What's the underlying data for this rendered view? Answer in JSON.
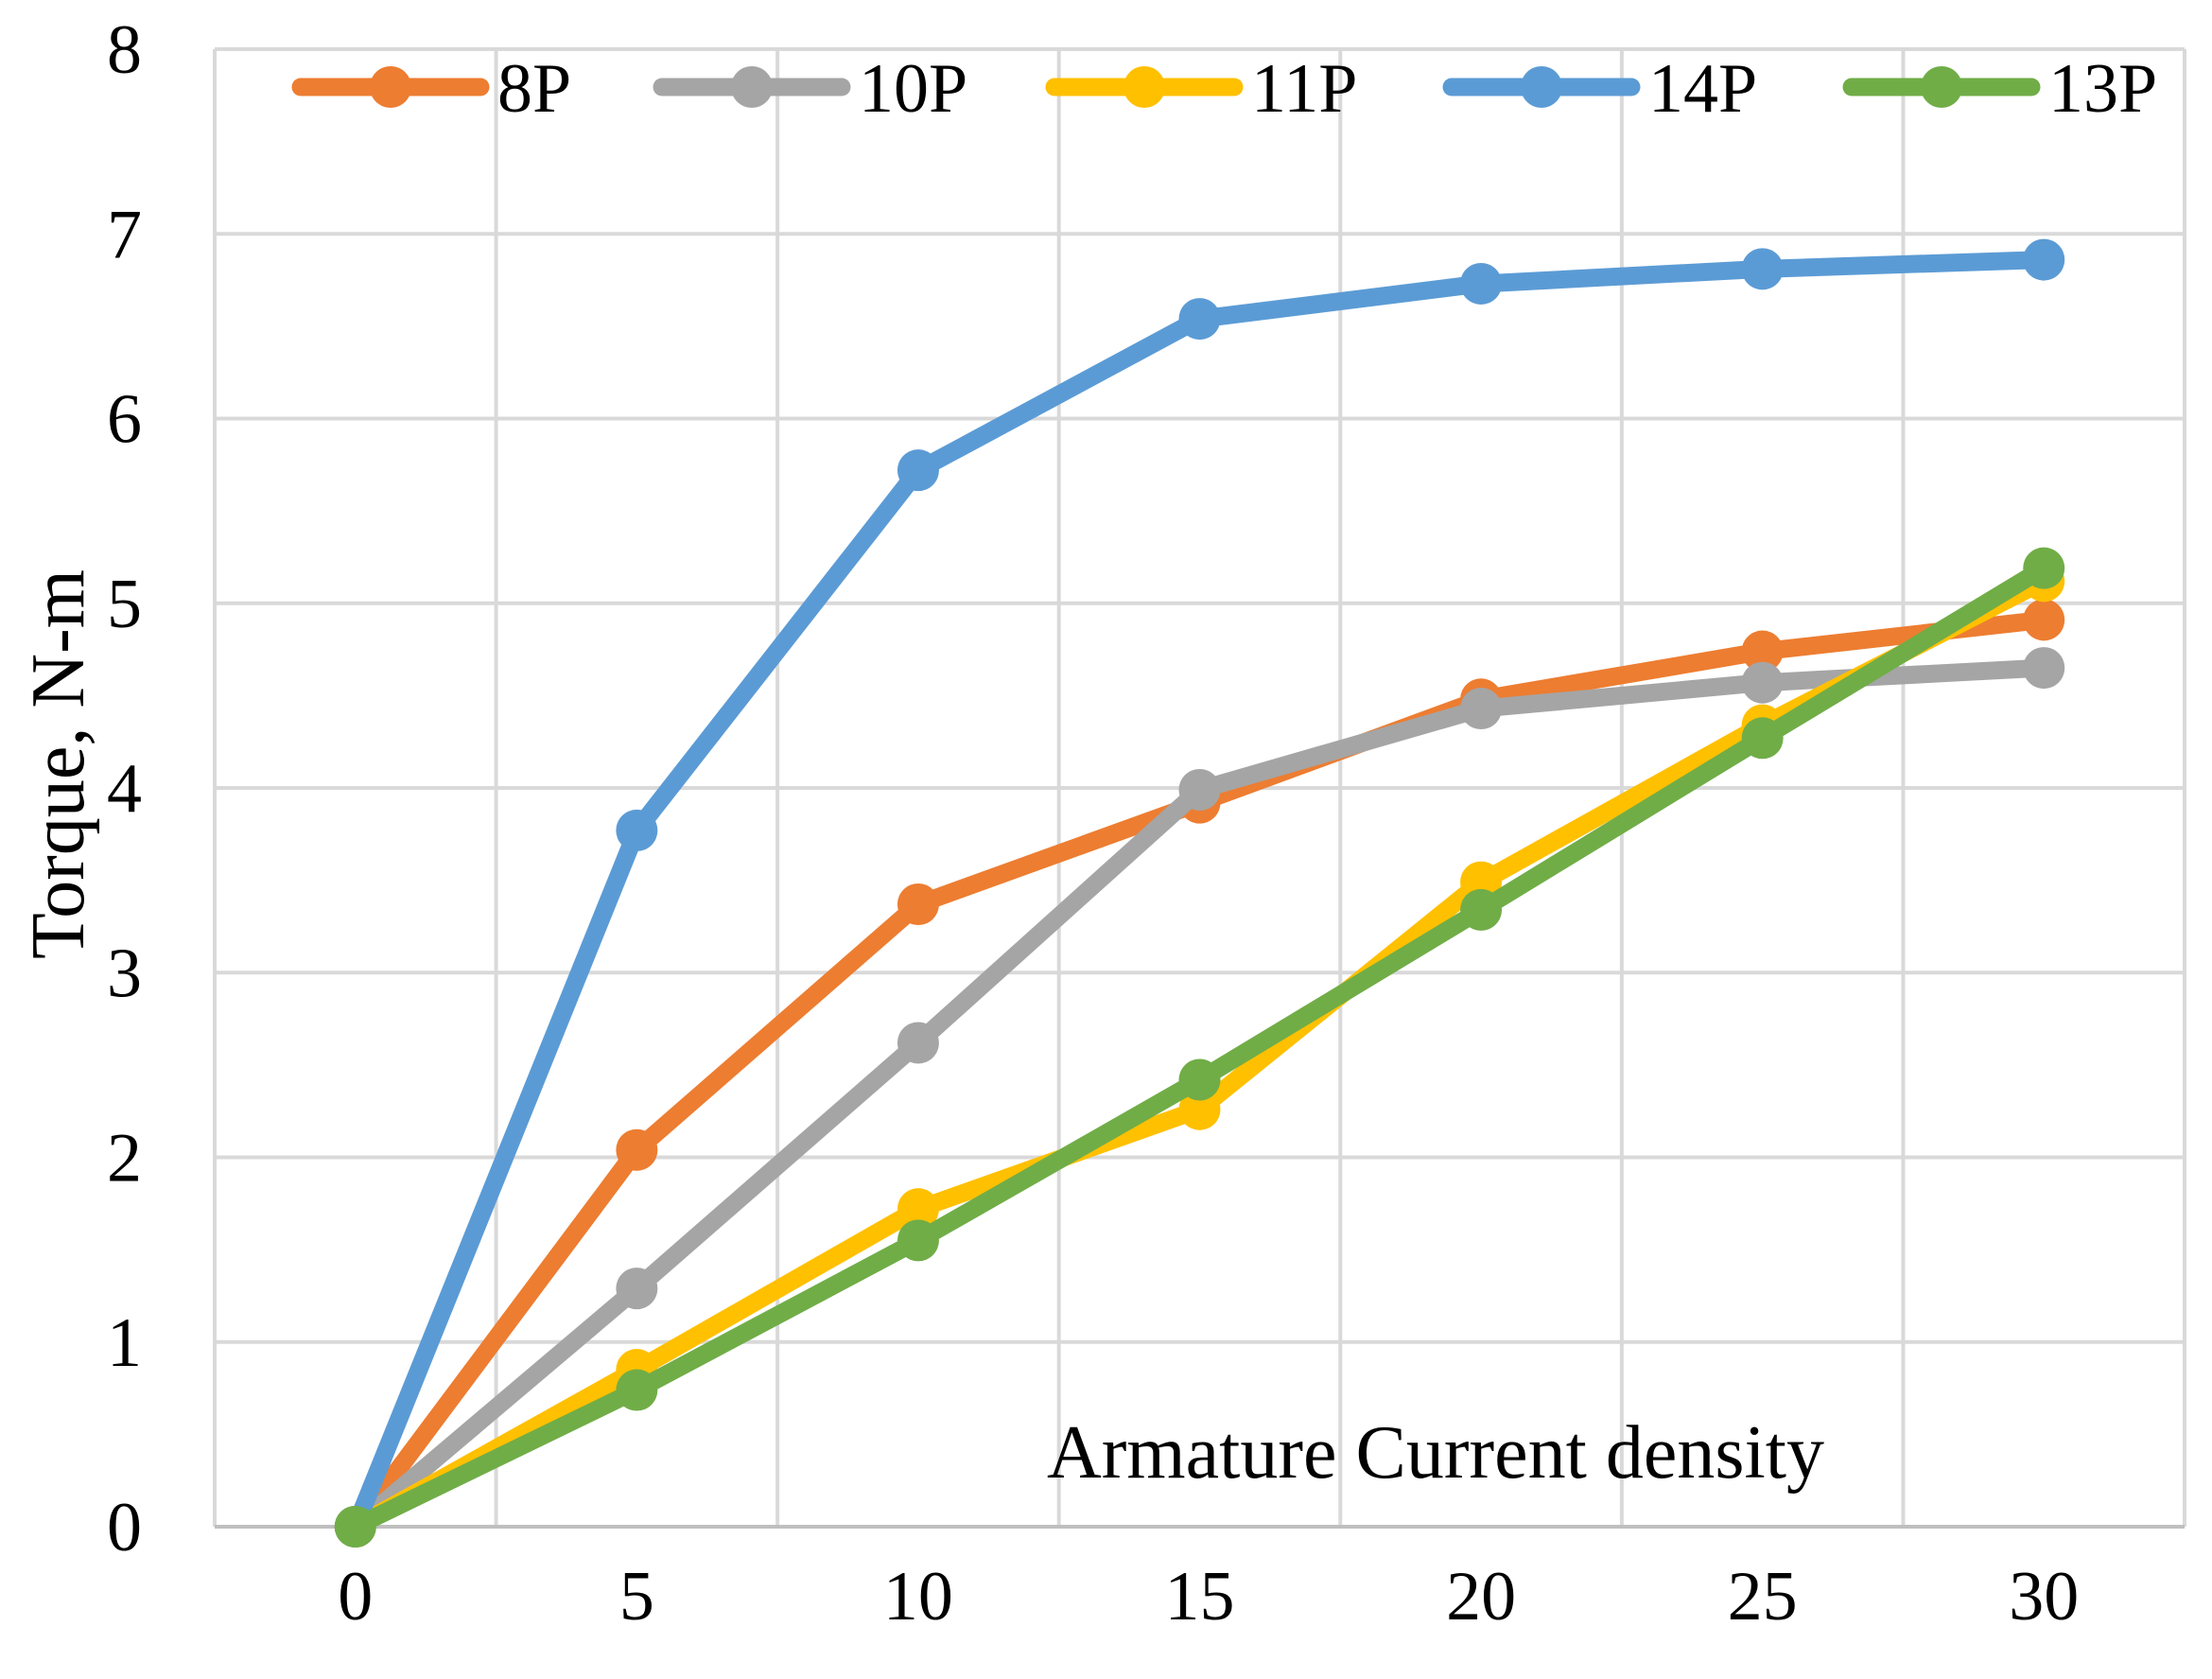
{
  "chart_data": {
    "type": "line",
    "title": "",
    "xlabel": "Armature Current density",
    "ylabel": "Torque, N-m",
    "x": [
      0,
      5,
      10,
      15,
      20,
      25,
      30
    ],
    "xlim": [
      -2.5,
      32.5
    ],
    "ylim": [
      0,
      8
    ],
    "xticks": [
      0,
      5,
      10,
      15,
      20,
      25,
      30
    ],
    "yticks": [
      0,
      1,
      2,
      3,
      4,
      5,
      6,
      7,
      8
    ],
    "grid": true,
    "legend_position": "top",
    "series": [
      {
        "name": "8P",
        "color": "#ED7D31",
        "values": [
          0,
          2.04,
          3.37,
          3.92,
          4.48,
          4.74,
          4.91
        ]
      },
      {
        "name": "10P",
        "color": "#A5A5A5",
        "values": [
          0,
          1.29,
          2.62,
          3.99,
          4.43,
          4.57,
          4.65
        ]
      },
      {
        "name": "11P",
        "color": "#FFC000",
        "values": [
          0,
          0.85,
          1.72,
          2.26,
          3.49,
          4.34,
          5.12
        ]
      },
      {
        "name": "14P",
        "color": "#5B9BD5",
        "values": [
          0,
          3.77,
          5.72,
          6.54,
          6.73,
          6.81,
          6.86
        ]
      },
      {
        "name": "13P",
        "color": "#70AD47",
        "values": [
          0,
          0.74,
          1.55,
          2.42,
          3.34,
          4.27,
          5.19
        ]
      }
    ]
  }
}
